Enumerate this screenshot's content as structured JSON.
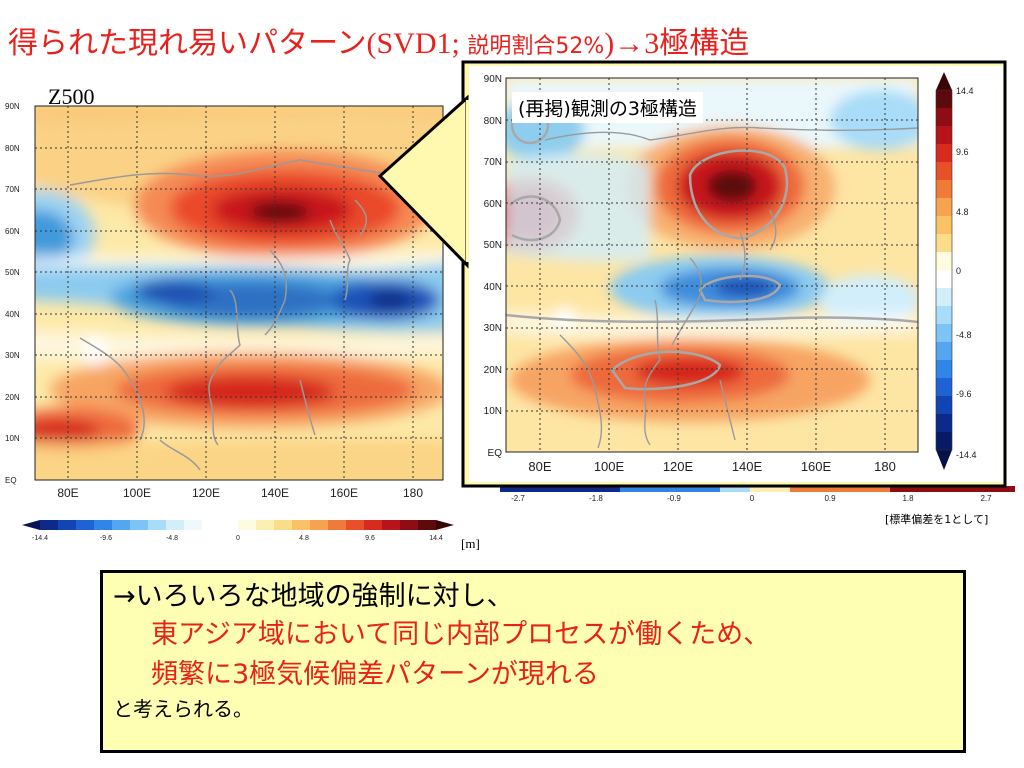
{
  "title": {
    "main": "得られた現れ易いパターン",
    "paren_open": "(SVD1; ",
    "ratio_label": "説明割合52%",
    "paren_close": ")→3",
    "suffix": "極構造"
  },
  "main_map": {
    "label": "Z500",
    "lat_ticks": [
      "90N",
      "80N",
      "70N",
      "60N",
      "50N",
      "40N",
      "30N",
      "20N",
      "10N",
      "EQ"
    ],
    "lon_ticks": [
      "80E",
      "100E",
      "120E",
      "140E",
      "160E",
      "180"
    ],
    "colorbar_ticks": [
      "-14.4",
      "-9.6",
      "-4.8",
      "0",
      "4.8",
      "9.6",
      "14.4"
    ],
    "unit": "[m]"
  },
  "inset_map": {
    "label": "(再掲)観測の3極構造",
    "lat_ticks": [
      "90N",
      "80N",
      "70N",
      "60N",
      "50N",
      "40N",
      "30N",
      "20N",
      "10N",
      "EQ"
    ],
    "lon_ticks": [
      "80E",
      "100E",
      "120E",
      "140E",
      "160E",
      "180"
    ],
    "colorbar_ticks": [
      "14.4",
      "9.6",
      "4.8",
      "0",
      "-4.8",
      "-9.6",
      "-14.4"
    ],
    "normalized_ticks": [
      "-2.7",
      "-1.8",
      "-0.9",
      "0",
      "0.9",
      "1.8",
      "2.7"
    ],
    "normalized_note": "[標準偏差を1として]"
  },
  "conclusion": {
    "line1": "→いろいろな地域の強制に対し、",
    "line2": "東アジア域において同じ内部プロセスが働くため、",
    "line3": "頻繁に3極気候偏差パターンが現れる",
    "line4": "と考えられる。"
  }
}
